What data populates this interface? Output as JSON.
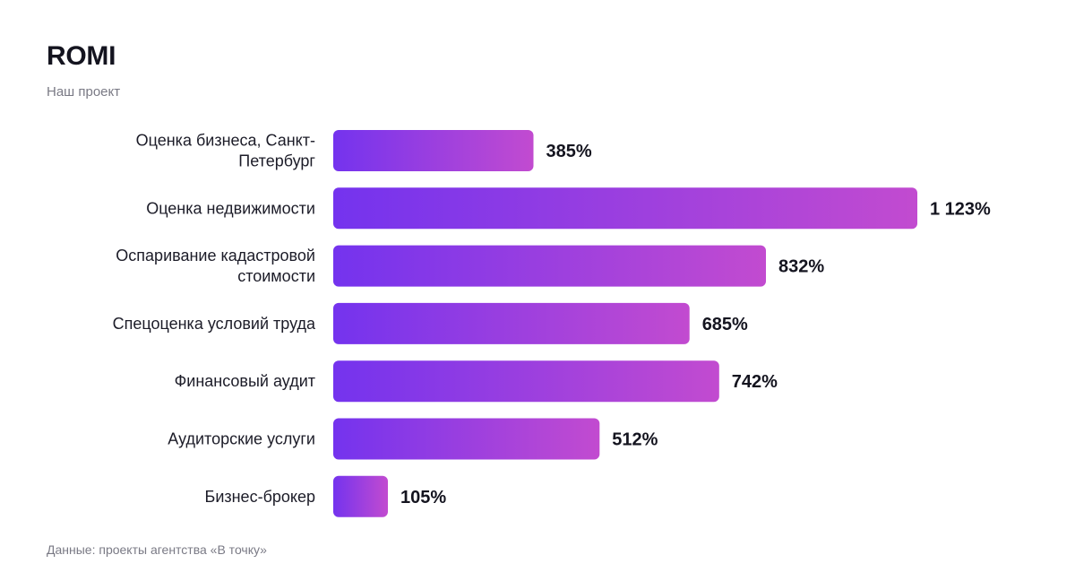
{
  "header": {
    "title": "ROMI",
    "subtitle": "Наш проект"
  },
  "footer": {
    "source": "Данные: проекты агентства «В точку»"
  },
  "colors": {
    "bar_start": "#7433ee",
    "bar_end": "#c24bd0"
  },
  "chart_data": {
    "type": "bar",
    "orientation": "horizontal",
    "title": "ROMI",
    "subtitle": "Наш проект",
    "categories": [
      [
        "Оценка бизнеса, Санкт-",
        "Петербург"
      ],
      [
        "Оценка недвижимости"
      ],
      [
        "Оспаривание кадастровой",
        "стоимости"
      ],
      [
        "Спецоценка условий труда"
      ],
      [
        "Финансовый аудит"
      ],
      [
        "Аудиторские услуги"
      ],
      [
        "Бизнес-брокер"
      ]
    ],
    "values": [
      385,
      1123,
      832,
      685,
      742,
      512,
      105
    ],
    "value_labels": [
      "385%",
      "1 123%",
      "832%",
      "685%",
      "742%",
      "512%",
      "105%"
    ],
    "unit": "%",
    "xlim": [
      0,
      1123
    ],
    "grid": false,
    "legend": "none"
  }
}
